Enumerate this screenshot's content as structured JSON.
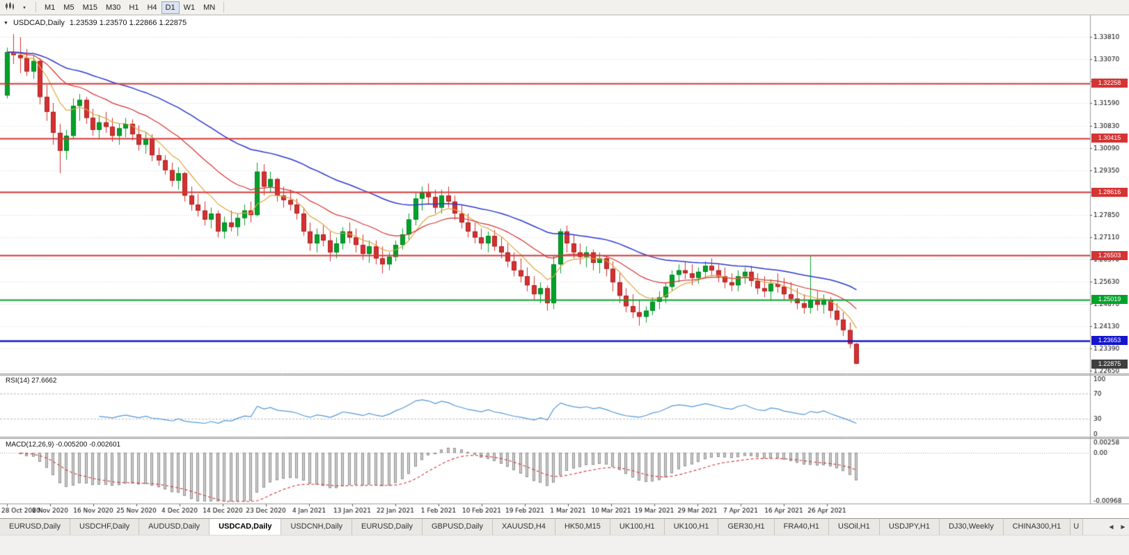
{
  "toolbar": {
    "dropdown_glyph": "▾",
    "timeframes": [
      {
        "label": "M1",
        "active": false
      },
      {
        "label": "M5",
        "active": false
      },
      {
        "label": "M15",
        "active": false
      },
      {
        "label": "M30",
        "active": false
      },
      {
        "label": "H1",
        "active": false
      },
      {
        "label": "H4",
        "active": false
      },
      {
        "label": "D1",
        "active": true
      },
      {
        "label": "W1",
        "active": false
      },
      {
        "label": "MN",
        "active": false
      }
    ]
  },
  "chart": {
    "collapse_icon": "▼",
    "symbol_title": "USDCAD,Daily",
    "ohlc_text": "1.23539 1.23570 1.22866 1.22875"
  },
  "chart_data": {
    "type": "candlestick",
    "symbol": "USDCAD",
    "timeframe": "Daily",
    "current_bar": {
      "open": 1.23539,
      "high": 1.2357,
      "low": 1.22866,
      "close": 1.22875
    },
    "y_max": 1.3453,
    "y_min": 1.2255,
    "y_axis_labels": [
      "1.33810",
      "1.33070",
      "1.32330",
      "1.31590",
      "1.30830",
      "1.30090",
      "1.29350",
      "1.28610",
      "1.27850",
      "1.27110",
      "1.26370",
      "1.25630",
      "1.24870",
      "1.24130",
      "1.23390",
      "1.22650"
    ],
    "x_labels": [
      "28 Oct 2020",
      "6 Nov 2020",
      "16 Nov 2020",
      "25 Nov 2020",
      "4 Dec 2020",
      "14 Dec 2020",
      "23 Dec 2020",
      "4 Jan 2021",
      "13 Jan 2021",
      "22 Jan 2021",
      "1 Feb 2021",
      "10 Feb 2021",
      "19 Feb 2021",
      "1 Mar 2021",
      "10 Mar 2021",
      "19 Mar 2021",
      "29 Mar 2021",
      "7 Apr 2021",
      "16 Apr 2021",
      "26 Apr 2021"
    ],
    "bull_color": "#00a32a",
    "bear_color": "#d53030",
    "candles": [
      [
        1.3185,
        1.3345,
        1.3175,
        1.333
      ],
      [
        1.333,
        1.339,
        1.329,
        1.332
      ],
      [
        1.332,
        1.338,
        1.326,
        1.331
      ],
      [
        1.331,
        1.334,
        1.325,
        1.3265
      ],
      [
        1.3265,
        1.332,
        1.324,
        1.33
      ],
      [
        1.33,
        1.331,
        1.3155,
        1.318
      ],
      [
        1.318,
        1.322,
        1.31,
        1.313
      ],
      [
        1.313,
        1.316,
        1.302,
        1.306
      ],
      [
        1.306,
        1.309,
        1.2925,
        1.3
      ],
      [
        1.3,
        1.307,
        1.297,
        1.305
      ],
      [
        1.305,
        1.3175,
        1.304,
        1.315
      ],
      [
        1.315,
        1.319,
        1.31,
        1.317
      ],
      [
        1.317,
        1.318,
        1.309,
        1.311
      ],
      [
        1.311,
        1.314,
        1.305,
        1.307
      ],
      [
        1.307,
        1.312,
        1.304,
        1.3095
      ],
      [
        1.3095,
        1.313,
        1.306,
        1.308
      ],
      [
        1.308,
        1.311,
        1.303,
        1.305
      ],
      [
        1.305,
        1.309,
        1.302,
        1.3075
      ],
      [
        1.3075,
        1.311,
        1.3045,
        1.309
      ],
      [
        1.309,
        1.3105,
        1.3035,
        1.3055
      ],
      [
        1.3055,
        1.3085,
        1.3,
        1.302
      ],
      [
        1.302,
        1.306,
        1.299,
        1.304
      ],
      [
        1.304,
        1.3055,
        1.2965,
        1.2985
      ],
      [
        1.2985,
        1.301,
        1.295,
        1.2968
      ],
      [
        1.2968,
        1.2985,
        1.292,
        1.2935
      ],
      [
        1.2935,
        1.296,
        1.288,
        1.29
      ],
      [
        1.29,
        1.2945,
        1.287,
        1.2925
      ],
      [
        1.2925,
        1.293,
        1.283,
        1.285
      ],
      [
        1.285,
        1.288,
        1.28,
        1.282
      ],
      [
        1.282,
        1.2855,
        1.278,
        1.28
      ],
      [
        1.28,
        1.283,
        1.275,
        1.277
      ],
      [
        1.277,
        1.281,
        1.274,
        1.279
      ],
      [
        1.279,
        1.28,
        1.271,
        1.273
      ],
      [
        1.273,
        1.278,
        1.2706,
        1.276
      ],
      [
        1.276,
        1.28,
        1.273,
        1.2745
      ],
      [
        1.2745,
        1.279,
        1.2715,
        1.2775
      ],
      [
        1.2775,
        1.282,
        1.275,
        1.28
      ],
      [
        1.28,
        1.283,
        1.276,
        1.2785
      ],
      [
        1.2785,
        1.296,
        1.278,
        1.293
      ],
      [
        1.293,
        1.2955,
        1.285,
        1.288
      ],
      [
        1.288,
        1.293,
        1.286,
        1.2905
      ],
      [
        1.2905,
        1.291,
        1.283,
        1.285
      ],
      [
        1.285,
        1.288,
        1.281,
        1.2835
      ],
      [
        1.2835,
        1.287,
        1.28,
        1.282
      ],
      [
        1.282,
        1.284,
        1.277,
        1.279
      ],
      [
        1.279,
        1.281,
        1.2715,
        1.273
      ],
      [
        1.273,
        1.276,
        1.2665,
        1.269
      ],
      [
        1.269,
        1.274,
        1.266,
        1.272
      ],
      [
        1.272,
        1.275,
        1.268,
        1.27
      ],
      [
        1.27,
        1.273,
        1.263,
        1.266
      ],
      [
        1.266,
        1.271,
        1.264,
        1.269
      ],
      [
        1.269,
        1.2745,
        1.267,
        1.273
      ],
      [
        1.273,
        1.276,
        1.269,
        1.271
      ],
      [
        1.271,
        1.274,
        1.266,
        1.2685
      ],
      [
        1.2685,
        1.272,
        1.2635,
        1.2655
      ],
      [
        1.2655,
        1.27,
        1.2625,
        1.268
      ],
      [
        1.268,
        1.27,
        1.262,
        1.264
      ],
      [
        1.264,
        1.268,
        1.259,
        1.262
      ],
      [
        1.262,
        1.266,
        1.26,
        1.2645
      ],
      [
        1.2645,
        1.27,
        1.263,
        1.2685
      ],
      [
        1.2685,
        1.274,
        1.267,
        1.272
      ],
      [
        1.272,
        1.279,
        1.27,
        1.277
      ],
      [
        1.277,
        1.286,
        1.275,
        1.284
      ],
      [
        1.284,
        1.288,
        1.28,
        1.286
      ],
      [
        1.286,
        1.289,
        1.282,
        1.2845
      ],
      [
        1.2845,
        1.287,
        1.279,
        1.281
      ],
      [
        1.281,
        1.287,
        1.279,
        1.285
      ],
      [
        1.285,
        1.288,
        1.281,
        1.283
      ],
      [
        1.283,
        1.285,
        1.277,
        1.279
      ],
      [
        1.279,
        1.282,
        1.274,
        1.276
      ],
      [
        1.276,
        1.279,
        1.271,
        1.273
      ],
      [
        1.273,
        1.276,
        1.269,
        1.271
      ],
      [
        1.271,
        1.274,
        1.267,
        1.269
      ],
      [
        1.269,
        1.273,
        1.266,
        1.2715
      ],
      [
        1.2715,
        1.2735,
        1.2665,
        1.268
      ],
      [
        1.268,
        1.271,
        1.264,
        1.266
      ],
      [
        1.266,
        1.269,
        1.261,
        1.263
      ],
      [
        1.263,
        1.266,
        1.258,
        1.26
      ],
      [
        1.26,
        1.264,
        1.256,
        1.258
      ],
      [
        1.258,
        1.261,
        1.253,
        1.255
      ],
      [
        1.255,
        1.258,
        1.25,
        1.252
      ],
      [
        1.252,
        1.256,
        1.249,
        1.254
      ],
      [
        1.254,
        1.255,
        1.2465,
        1.249
      ],
      [
        1.249,
        1.265,
        1.247,
        1.262
      ],
      [
        1.262,
        1.274,
        1.259,
        1.273
      ],
      [
        1.273,
        1.275,
        1.266,
        1.269
      ],
      [
        1.269,
        1.272,
        1.264,
        1.266
      ],
      [
        1.266,
        1.269,
        1.262,
        1.2645
      ],
      [
        1.2645,
        1.268,
        1.261,
        1.266
      ],
      [
        1.266,
        1.267,
        1.26,
        1.2625
      ],
      [
        1.2625,
        1.266,
        1.259,
        1.264
      ],
      [
        1.264,
        1.265,
        1.258,
        1.2605
      ],
      [
        1.2605,
        1.263,
        1.253,
        1.256
      ],
      [
        1.256,
        1.259,
        1.249,
        1.2515
      ],
      [
        1.2515,
        1.254,
        1.246,
        1.248
      ],
      [
        1.248,
        1.252,
        1.244,
        1.246
      ],
      [
        1.246,
        1.25,
        1.2415,
        1.2445
      ],
      [
        1.2445,
        1.248,
        1.2425,
        1.2465
      ],
      [
        1.2465,
        1.251,
        1.245,
        1.2495
      ],
      [
        1.2495,
        1.253,
        1.247,
        1.251
      ],
      [
        1.251,
        1.256,
        1.249,
        1.2545
      ],
      [
        1.2545,
        1.26,
        1.253,
        1.2585
      ],
      [
        1.2585,
        1.262,
        1.256,
        1.26
      ],
      [
        1.26,
        1.263,
        1.257,
        1.259
      ],
      [
        1.259,
        1.262,
        1.255,
        1.2575
      ],
      [
        1.2575,
        1.261,
        1.2555,
        1.2595
      ],
      [
        1.2595,
        1.263,
        1.2575,
        1.2615
      ],
      [
        1.2615,
        1.264,
        1.258,
        1.26
      ],
      [
        1.26,
        1.262,
        1.256,
        1.258
      ],
      [
        1.258,
        1.261,
        1.254,
        1.256
      ],
      [
        1.256,
        1.259,
        1.253,
        1.255
      ],
      [
        1.255,
        1.26,
        1.253,
        1.258
      ],
      [
        1.258,
        1.261,
        1.2555,
        1.2595
      ],
      [
        1.2595,
        1.2615,
        1.2545,
        1.2565
      ],
      [
        1.2565,
        1.259,
        1.252,
        1.254
      ],
      [
        1.254,
        1.258,
        1.251,
        1.253
      ],
      [
        1.253,
        1.257,
        1.25,
        1.2555
      ],
      [
        1.2555,
        1.259,
        1.2525,
        1.2545
      ],
      [
        1.2545,
        1.2575,
        1.25,
        1.252
      ],
      [
        1.252,
        1.256,
        1.249,
        1.2505
      ],
      [
        1.2505,
        1.254,
        1.247,
        1.249
      ],
      [
        1.249,
        1.252,
        1.2455,
        1.2475
      ],
      [
        1.2475,
        1.265,
        1.2455,
        1.25
      ],
      [
        1.25,
        1.253,
        1.2465,
        1.2485
      ],
      [
        1.2485,
        1.252,
        1.2455,
        1.25
      ],
      [
        1.25,
        1.251,
        1.244,
        1.2465
      ],
      [
        1.2465,
        1.249,
        1.2415,
        1.2435
      ],
      [
        1.2435,
        1.246,
        1.238,
        1.24
      ],
      [
        1.24,
        1.2425,
        1.234,
        1.2354
      ],
      [
        1.23539,
        1.2357,
        1.22866,
        1.22875
      ]
    ],
    "moving_averages": [
      {
        "period": 8,
        "color": "#dca73e",
        "width": 1.2
      },
      {
        "period": 20,
        "color": "#d53030",
        "width": 1.2
      },
      {
        "period": 45,
        "color": "#2936cc",
        "width": 1.5
      }
    ],
    "horizontal_lines": [
      {
        "price": 1.32258,
        "label": "1.32258",
        "color": "#d43434",
        "width": 2
      },
      {
        "price": 1.30415,
        "label": "1.30415",
        "color": "#d43434",
        "width": 2
      },
      {
        "price": 1.28616,
        "label": "1.28616",
        "color": "#d43434",
        "width": 2
      },
      {
        "price": 1.26503,
        "label": "1.26503",
        "color": "#d43434",
        "width": 2
      },
      {
        "price": 1.25019,
        "label": "1.25019",
        "color": "#00a32a",
        "width": 2
      },
      {
        "price": 1.23653,
        "label": "1.23653",
        "color": "#1515cd",
        "width": 2.5
      }
    ],
    "current_price_label": {
      "price": 1.22875,
      "label": "1.22875",
      "color": "#3f3f3f"
    },
    "rsi": {
      "title": "RSI(14) 27.6662",
      "period": 14,
      "last_value": 27.6662,
      "levels": [
        70,
        30
      ],
      "scale_labels": [
        {
          "v": 100,
          "t": "100"
        },
        {
          "v": 70,
          "t": "70"
        },
        {
          "v": 30,
          "t": "30"
        },
        {
          "v": 0,
          "t": "0"
        }
      ],
      "color": "#4f97d7"
    },
    "macd": {
      "title": "MACD(12,26,9) -0.005200 -0.002601",
      "fast": 12,
      "slow": 26,
      "signal_period": 9,
      "last_main": -0.0052,
      "last_signal": -0.002601,
      "scale_max": 0.00258,
      "scale_min": -0.00968,
      "scale_labels": [
        {
          "v": 0.00258,
          "t": "0.00258"
        },
        {
          "v": 0,
          "t": "0.00"
        },
        {
          "v": -0.00968,
          "t": "-0.00968"
        }
      ],
      "histogram_color": "#cdcdcd",
      "histogram_border": "#8f8f8f",
      "signal_color": "#d53030"
    }
  },
  "tabs": {
    "nav_left": "◀",
    "nav_right": "▶",
    "items": [
      {
        "label": "EURUSD,Daily",
        "active": false
      },
      {
        "label": "USDCHF,Daily",
        "active": false
      },
      {
        "label": "AUDUSD,Daily",
        "active": false
      },
      {
        "label": "USDCAD,Daily",
        "active": true
      },
      {
        "label": "USDCNH,Daily",
        "active": false
      },
      {
        "label": "EURUSD,Daily",
        "active": false
      },
      {
        "label": "GBPUSD,Daily",
        "active": false
      },
      {
        "label": "XAUUSD,H4",
        "active": false
      },
      {
        "label": "HK50,M15",
        "active": false
      },
      {
        "label": "UK100,H1",
        "active": false
      },
      {
        "label": "UK100,H1",
        "active": false
      },
      {
        "label": "GER30,H1",
        "active": false
      },
      {
        "label": "FRA40,H1",
        "active": false
      },
      {
        "label": "USOil,H1",
        "active": false
      },
      {
        "label": "USDJPY,H1",
        "active": false
      },
      {
        "label": "DJ30,Weekly",
        "active": false
      },
      {
        "label": "CHINA300,H1",
        "active": false
      },
      {
        "label": "U",
        "active": false,
        "cut": true
      }
    ]
  }
}
